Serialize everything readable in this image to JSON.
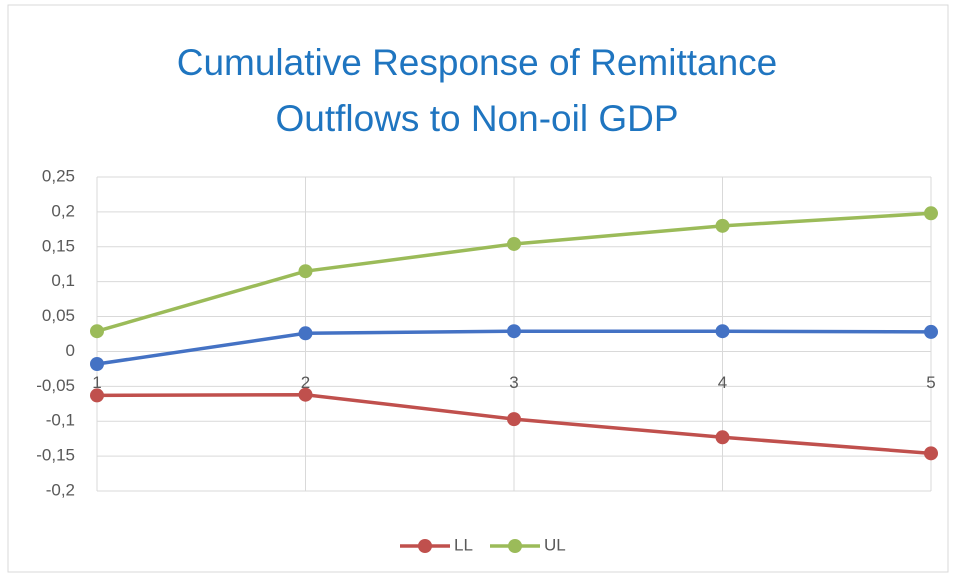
{
  "chart_data": {
    "type": "line",
    "title_lines": [
      "Cumulative Response of Remittance",
      "Outflows to Non-oil GDP"
    ],
    "categories": [
      "1",
      "2",
      "3",
      "4",
      "5"
    ],
    "series": [
      {
        "color": "#4472c4",
        "values": [
          -0.018,
          0.026,
          0.029,
          0.029,
          0.028
        ]
      },
      {
        "name": "LL",
        "color": "#c0504d",
        "values": [
          -0.063,
          -0.062,
          -0.097,
          -0.123,
          -0.146
        ]
      },
      {
        "name": "UL",
        "color": "#9bbb59",
        "values": [
          0.029,
          0.115,
          0.154,
          0.18,
          0.198
        ]
      }
    ],
    "ylim": [
      -0.2,
      0.25
    ],
    "yticks": [
      {
        "value": -0.2,
        "label": "-0,2"
      },
      {
        "value": -0.15,
        "label": "-0,15"
      },
      {
        "value": -0.1,
        "label": "-0,1"
      },
      {
        "value": -0.05,
        "label": "-0,05"
      },
      0,
      {
        "value": 0.05,
        "label": "0,05"
      },
      {
        "value": 0.1,
        "label": "0,1"
      },
      {
        "value": 0.15,
        "label": "0,15"
      },
      {
        "value": 0.2,
        "label": "0,2"
      },
      {
        "value": 0.25,
        "label": "0,25"
      }
    ],
    "grid": true,
    "legend": "bottom"
  }
}
